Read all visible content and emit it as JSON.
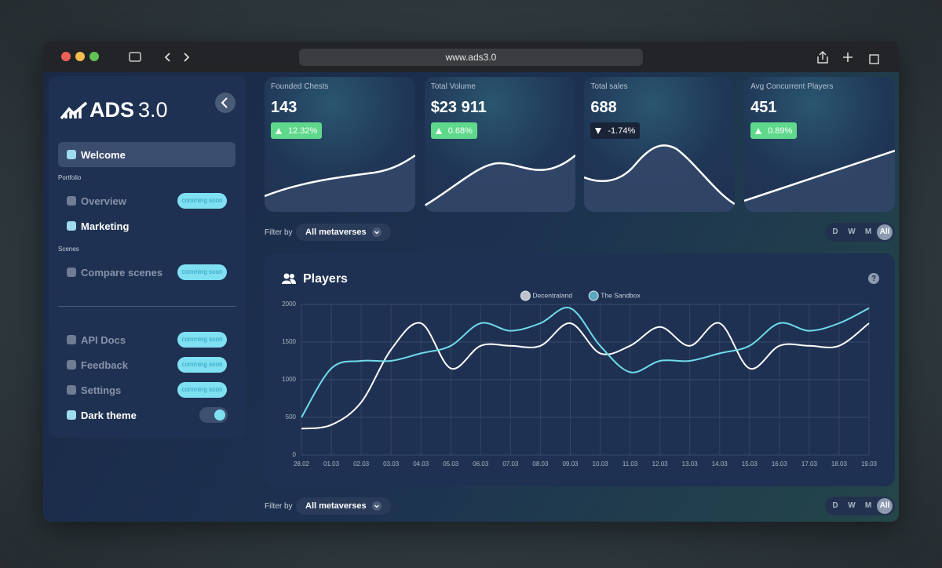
{
  "browser": {
    "url": "www.ads3.0"
  },
  "sidebar": {
    "logo": {
      "name": "ADS",
      "version": "3.0"
    },
    "welcome": "Welcome",
    "sections": [
      {
        "title": "Portfolio",
        "items": [
          {
            "label": "Overview",
            "badge": "comming soon"
          },
          {
            "label": "Marketing"
          }
        ]
      },
      {
        "title": "Scenes",
        "items": [
          {
            "label": "Compare scenes",
            "badge": "comming soon"
          }
        ]
      }
    ],
    "footer_items": [
      {
        "label": "API Docs",
        "badge": "comming soon"
      },
      {
        "label": "Feedback",
        "badge": "comming soon"
      },
      {
        "label": "Settings",
        "badge": "comming soon"
      },
      {
        "label": "Dark theme",
        "toggle": true
      }
    ]
  },
  "kpis": [
    {
      "title": "Founded Chests",
      "value": 143,
      "change": "12.32%",
      "trend": "up"
    },
    {
      "title": "Total Volume",
      "value": "$23 911",
      "change": "0.68%",
      "trend": "up"
    },
    {
      "title": "Total sales",
      "value": 688,
      "change": "-1.74%",
      "trend": "down"
    },
    {
      "title": "Avg Concurrent Players",
      "value": 451,
      "change": "0.89%",
      "trend": "up"
    }
  ],
  "filters": [
    {
      "label": "Filter by",
      "selected": "All metaverses",
      "periods": [
        "D",
        "W",
        "M",
        "All"
      ],
      "active_period": "All"
    },
    {
      "label": "Filter by",
      "selected": "All metaverses",
      "periods": [
        "D",
        "W",
        "M",
        "All"
      ],
      "active_period": "All"
    }
  ],
  "chart_data": {
    "type": "line",
    "title": "Players",
    "help": "?",
    "categories": [
      "28.02",
      "01.03",
      "02.03",
      "03.03",
      "04.03",
      "05.03",
      "06.03",
      "07.03",
      "08.03",
      "09.03",
      "10.03",
      "11.03",
      "12.03",
      "13.03",
      "14.03",
      "15.03",
      "16.03",
      "17.03",
      "18.03",
      "19.03"
    ],
    "series": [
      {
        "name": "Decentraland",
        "color": "#ffffff",
        "values": [
          350,
          400,
          700,
          1400,
          1750,
          1150,
          1450,
          1450,
          1450,
          1750,
          1350,
          1450,
          1700,
          1450,
          1750,
          1150,
          1450,
          1450,
          1450,
          1750
        ]
      },
      {
        "name": "The Sandbox",
        "color": "#6fdcea",
        "values": [
          500,
          1150,
          1250,
          1250,
          1350,
          1450,
          1750,
          1650,
          1750,
          1950,
          1450,
          1100,
          1250,
          1250,
          1350,
          1450,
          1750,
          1650,
          1750,
          1950
        ]
      }
    ],
    "ylim": [
      0,
      2000
    ],
    "yticks": [
      0,
      500,
      1000,
      1500,
      2000
    ],
    "grid": true
  }
}
